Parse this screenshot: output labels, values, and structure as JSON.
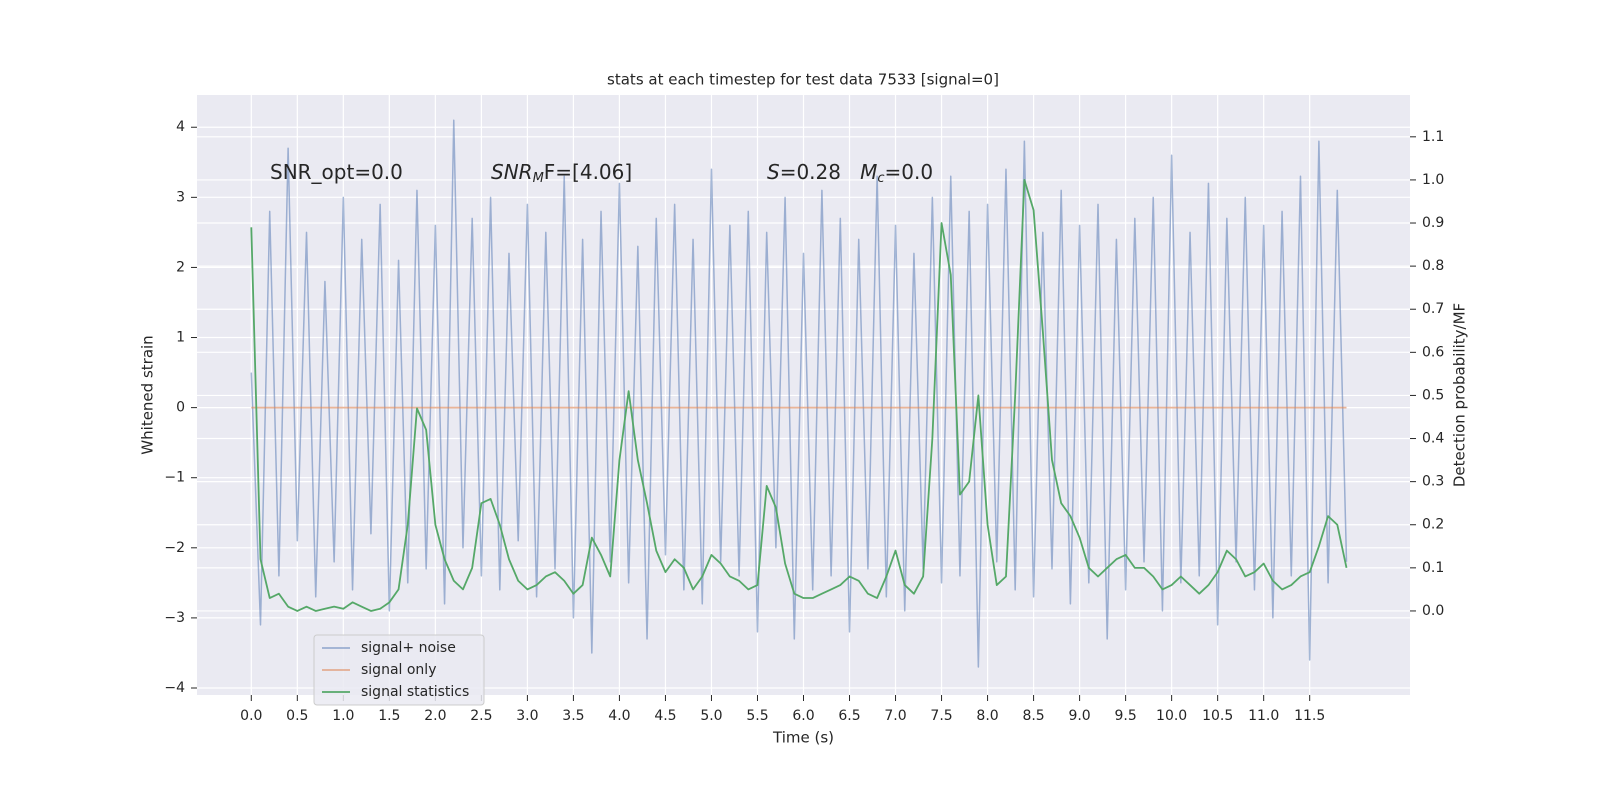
{
  "chart_data": {
    "type": "line",
    "title": "stats at each timestep for test data 7533 [signal=0]",
    "x_label": "Time (s)",
    "y_label": "Whitened strain",
    "y2_label": "Detection probability/MF",
    "annotations": [
      [
        {
          "text": "SNR_opt=0.0",
          "style": "normal"
        }
      ],
      [
        {
          "text": "SNR",
          "style": "italic"
        },
        {
          "text": "M",
          "style": "sub"
        },
        {
          "text": "F=[4.06]",
          "style": "normal"
        }
      ],
      [
        {
          "text": "S",
          "style": "italic"
        },
        {
          "text": "=0.28   ",
          "style": "normal"
        },
        {
          "text": "M",
          "style": "italic"
        },
        {
          "text": "c",
          "style": "sub"
        },
        {
          "text": "=0.0",
          "style": "normal"
        }
      ]
    ],
    "x": [
      0,
      0.1,
      0.2,
      0.3,
      0.4,
      0.5,
      0.6,
      0.7,
      0.8,
      0.9,
      1,
      1.1,
      1.2,
      1.3,
      1.4,
      1.5,
      1.6,
      1.7,
      1.8,
      1.9,
      2,
      2.1,
      2.2,
      2.3,
      2.4,
      2.5,
      2.6,
      2.7,
      2.8,
      2.9,
      3,
      3.1,
      3.2,
      3.3,
      3.4,
      3.5,
      3.6,
      3.7,
      3.8,
      3.9,
      4,
      4.1,
      4.2,
      4.3,
      4.4,
      4.5,
      4.6,
      4.7,
      4.8,
      4.9,
      5,
      5.1,
      5.2,
      5.3,
      5.4,
      5.5,
      5.6,
      5.7,
      5.8,
      5.9,
      6,
      6.1,
      6.2,
      6.3,
      6.4,
      6.5,
      6.6,
      6.7,
      6.8,
      6.9,
      7,
      7.1,
      7.2,
      7.3,
      7.4,
      7.5,
      7.6,
      7.7,
      7.8,
      7.9,
      8,
      8.1,
      8.2,
      8.3,
      8.4,
      8.5,
      8.6,
      8.7,
      8.8,
      8.9,
      9,
      9.1,
      9.2,
      9.3,
      9.4,
      9.5,
      9.6,
      9.7,
      9.8,
      9.9,
      10,
      10.1,
      10.2,
      10.3,
      10.4,
      10.5,
      10.6,
      10.7,
      10.8,
      10.9,
      11,
      11.1,
      11.2,
      11.3,
      11.4,
      11.5,
      11.6,
      11.7,
      11.8,
      11.9
    ],
    "series": [
      {
        "name": "signal+ noise",
        "color": "#4c72b0",
        "opacity": 0.5,
        "axis": "y",
        "values": [
          0.5,
          -3.1,
          2.8,
          -2.4,
          3.7,
          -1.9,
          2.5,
          -2.7,
          1.8,
          -2.2,
          3.0,
          -2.6,
          2.4,
          -1.8,
          2.9,
          -2.9,
          2.1,
          -2.5,
          3.1,
          -2.3,
          2.6,
          -2.8,
          4.1,
          -2.0,
          2.7,
          -2.4,
          3.0,
          -2.6,
          2.2,
          -1.9,
          2.9,
          -2.7,
          2.5,
          -2.3,
          3.3,
          -3.0,
          2.4,
          -3.5,
          2.8,
          -2.2,
          3.2,
          -2.5,
          2.3,
          -3.3,
          2.7,
          -2.1,
          2.9,
          -2.6,
          2.4,
          -2.8,
          3.4,
          -2.2,
          2.6,
          -2.4,
          2.8,
          -3.2,
          2.5,
          -2.0,
          3.0,
          -3.3,
          2.2,
          -2.6,
          3.1,
          -2.4,
          2.7,
          -3.2,
          2.4,
          -2.3,
          3.3,
          -2.7,
          2.6,
          -2.9,
          2.2,
          -2.3,
          3.0,
          -2.5,
          3.3,
          -2.4,
          2.8,
          -3.7,
          2.9,
          -2.2,
          3.4,
          -2.6,
          3.8,
          -2.7,
          2.5,
          -2.3,
          3.1,
          -2.8,
          2.6,
          -2.5,
          2.9,
          -3.3,
          2.4,
          -2.6,
          2.7,
          -2.2,
          3.0,
          -2.9,
          3.6,
          -2.5,
          2.5,
          -2.4,
          3.2,
          -3.1,
          2.7,
          -2.2,
          3.0,
          -2.6,
          2.6,
          -3.0,
          2.8,
          -2.4,
          3.3,
          -3.6,
          3.8,
          -2.5,
          3.1,
          -2.2
        ]
      },
      {
        "name": "signal only",
        "color": "#dd8452",
        "opacity": 0.6,
        "axis": "y",
        "values": [
          0,
          0,
          0,
          0,
          0,
          0,
          0,
          0,
          0,
          0,
          0,
          0,
          0,
          0,
          0,
          0,
          0,
          0,
          0,
          0,
          0,
          0,
          0,
          0,
          0,
          0,
          0,
          0,
          0,
          0,
          0,
          0,
          0,
          0,
          0,
          0,
          0,
          0,
          0,
          0,
          0,
          0,
          0,
          0,
          0,
          0,
          0,
          0,
          0,
          0,
          0,
          0,
          0,
          0,
          0,
          0,
          0,
          0,
          0,
          0,
          0,
          0,
          0,
          0,
          0,
          0,
          0,
          0,
          0,
          0,
          0,
          0,
          0,
          0,
          0,
          0,
          0,
          0,
          0,
          0,
          0,
          0,
          0,
          0,
          0,
          0,
          0,
          0,
          0,
          0,
          0,
          0,
          0,
          0,
          0,
          0,
          0,
          0,
          0,
          0,
          0,
          0,
          0,
          0,
          0,
          0,
          0,
          0,
          0,
          0,
          0,
          0,
          0,
          0,
          0,
          0,
          0,
          0,
          0,
          0
        ]
      },
      {
        "name": "signal statistics",
        "color": "#55a868",
        "opacity": 1,
        "axis": "y2",
        "values": [
          0.89,
          0.12,
          0.03,
          0.04,
          0.01,
          0.0,
          0.01,
          0.0,
          0.005,
          0.01,
          0.005,
          0.02,
          0.01,
          0.0,
          0.005,
          0.02,
          0.05,
          0.2,
          0.47,
          0.42,
          0.2,
          0.12,
          0.07,
          0.05,
          0.1,
          0.25,
          0.26,
          0.2,
          0.12,
          0.07,
          0.05,
          0.06,
          0.08,
          0.09,
          0.07,
          0.04,
          0.06,
          0.17,
          0.13,
          0.08,
          0.35,
          0.51,
          0.35,
          0.25,
          0.14,
          0.09,
          0.12,
          0.1,
          0.05,
          0.08,
          0.13,
          0.11,
          0.08,
          0.07,
          0.05,
          0.06,
          0.29,
          0.24,
          0.11,
          0.04,
          0.03,
          0.03,
          0.04,
          0.05,
          0.06,
          0.08,
          0.07,
          0.04,
          0.03,
          0.08,
          0.14,
          0.06,
          0.04,
          0.08,
          0.4,
          0.9,
          0.78,
          0.27,
          0.3,
          0.5,
          0.2,
          0.06,
          0.08,
          0.5,
          1.0,
          0.93,
          0.65,
          0.35,
          0.25,
          0.22,
          0.17,
          0.1,
          0.08,
          0.1,
          0.12,
          0.13,
          0.1,
          0.1,
          0.08,
          0.05,
          0.06,
          0.08,
          0.06,
          0.04,
          0.06,
          0.09,
          0.14,
          0.12,
          0.08,
          0.09,
          0.11,
          0.07,
          0.05,
          0.06,
          0.08,
          0.09,
          0.15,
          0.22,
          0.2,
          0.1
        ]
      }
    ],
    "xlim": [
      -0.59,
      12.59
    ],
    "xticks": [
      {
        "value": 0,
        "label": "0.0"
      },
      {
        "value": 0.5,
        "label": "0.5"
      },
      {
        "value": 1,
        "label": "1.0"
      },
      {
        "value": 1.5,
        "label": "1.5"
      },
      {
        "value": 2,
        "label": "2.0"
      },
      {
        "value": 2.5,
        "label": "2.5"
      },
      {
        "value": 3,
        "label": "3.0"
      },
      {
        "value": 3.5,
        "label": "3.5"
      },
      {
        "value": 4,
        "label": "4.0"
      },
      {
        "value": 4.5,
        "label": "4.5"
      },
      {
        "value": 5,
        "label": "5.0"
      },
      {
        "value": 5.5,
        "label": "5.5"
      },
      {
        "value": 6,
        "label": "6.0"
      },
      {
        "value": 6.5,
        "label": "6.5"
      },
      {
        "value": 7,
        "label": "7.0"
      },
      {
        "value": 7.5,
        "label": "7.5"
      },
      {
        "value": 8,
        "label": "8.0"
      },
      {
        "value": 8.5,
        "label": "8.5"
      },
      {
        "value": 9,
        "label": "9.0"
      },
      {
        "value": 9.5,
        "label": "9.5"
      },
      {
        "value": 10,
        "label": "10.0"
      },
      {
        "value": 10.5,
        "label": "10.5"
      },
      {
        "value": 11,
        "label": "11.0"
      },
      {
        "value": 11.5,
        "label": "11.5"
      }
    ],
    "ylim": [
      -4.1,
      4.46
    ],
    "yticks": [
      {
        "value": -4,
        "label": "−4"
      },
      {
        "value": -3,
        "label": "−3"
      },
      {
        "value": -2,
        "label": "−2"
      },
      {
        "value": -1,
        "label": "−1"
      },
      0,
      1,
      2,
      3,
      4
    ],
    "y2lim": [
      -0.195,
      1.197
    ],
    "y2ticks": [
      {
        "value": 0,
        "label": "0.0"
      },
      {
        "value": 0.1,
        "label": "0.1"
      },
      {
        "value": 0.2,
        "label": "0.2"
      },
      {
        "value": 0.3,
        "label": "0.3"
      },
      {
        "value": 0.4,
        "label": "0.4"
      },
      {
        "value": 0.5,
        "label": "0.5"
      },
      {
        "value": 0.6,
        "label": "0.6"
      },
      {
        "value": 0.7,
        "label": "0.7"
      },
      {
        "value": 0.8,
        "label": "0.8"
      },
      {
        "value": 0.9,
        "label": "0.9"
      },
      {
        "value": 1,
        "label": "1.0"
      },
      {
        "value": 1.1,
        "label": "1.1"
      }
    ],
    "grid": true,
    "legend": "lower left",
    "background": "#eaeaf2"
  }
}
